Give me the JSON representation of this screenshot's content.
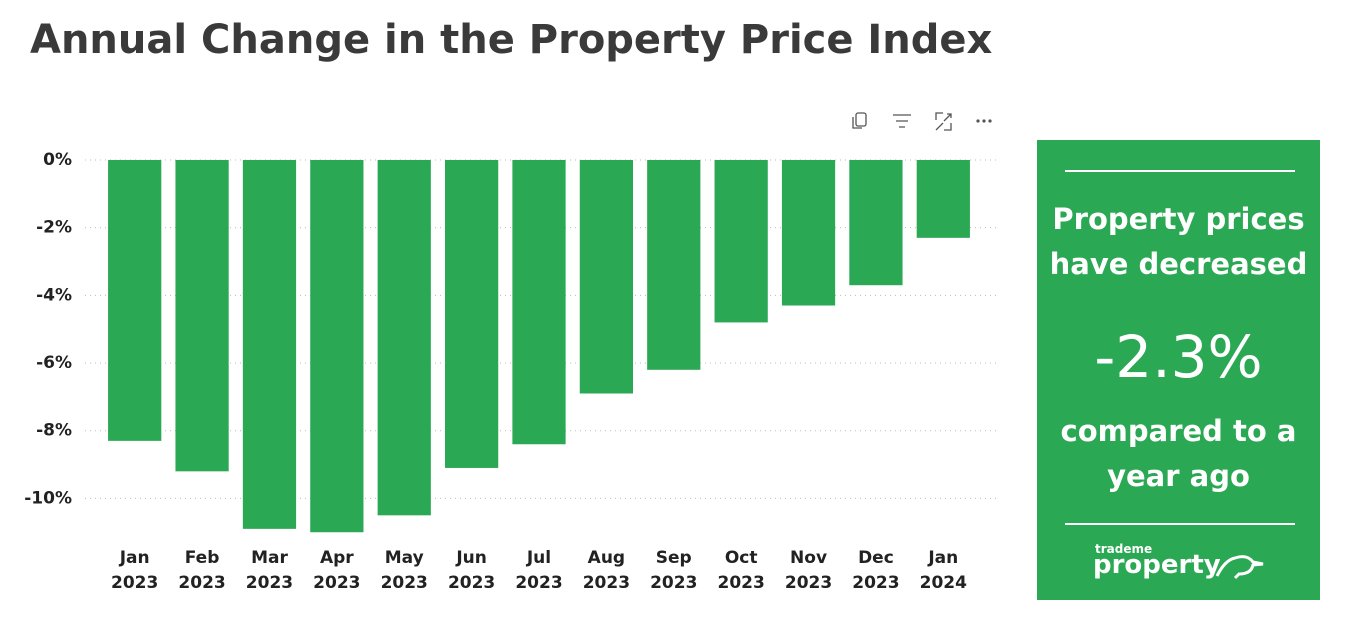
{
  "chart_data": {
    "type": "bar",
    "title": "Annual Change in the Property Price Index",
    "categories": [
      "Jan 2023",
      "Feb 2023",
      "Mar 2023",
      "Apr 2023",
      "May 2023",
      "Jun 2023",
      "Jul 2023",
      "Aug 2023",
      "Sep 2023",
      "Oct 2023",
      "Nov 2023",
      "Dec 2023",
      "Jan 2024"
    ],
    "values": [
      -8.3,
      -9.2,
      -10.9,
      -11.0,
      -10.5,
      -9.1,
      -8.4,
      -6.9,
      -6.2,
      -4.8,
      -4.3,
      -3.7,
      -2.3
    ],
    "color": "#2aa853",
    "ylim": [
      -11.2,
      0
    ],
    "yticks": [
      {
        "value": 0,
        "label": "0%"
      },
      {
        "value": -2,
        "label": "-2%"
      },
      {
        "value": -4,
        "label": "-4%"
      },
      {
        "value": -6,
        "label": "-6%"
      },
      {
        "value": -8,
        "label": "-8%"
      },
      {
        "value": -10,
        "label": "-10%"
      }
    ],
    "grid": true
  },
  "card": {
    "headline": "Property prices have decreased",
    "value_label": "-2.3%",
    "footer": "compared to a year ago",
    "brand_small": "trademe",
    "brand": "property"
  }
}
